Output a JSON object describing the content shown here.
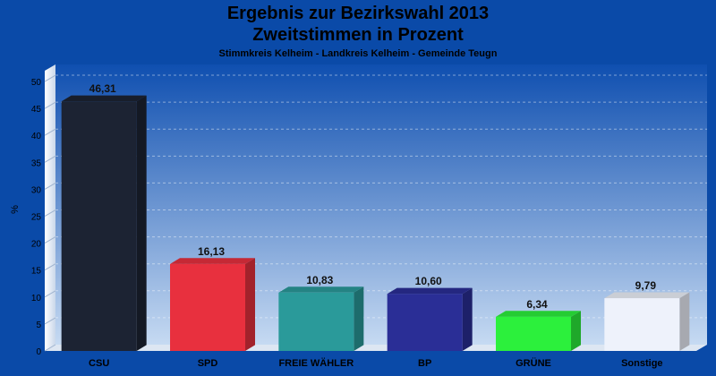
{
  "header": {
    "title_line1": "Ergebnis zur Bezirkswahl 2013",
    "title_line2": "Zweitstimmen in Prozent",
    "subtitle": "Stimmkreis Kelheim - Landkreis Kelheim - Gemeinde Teugn"
  },
  "chart_data": {
    "type": "bar",
    "title": "Ergebnis zur Bezirkswahl 2013 / Zweitstimmen in Prozent",
    "subtitle": "Stimmkreis Kelheim - Landkreis Kelheim - Gemeinde Teugn",
    "ylabel": "%",
    "xlabel": "",
    "ylim": [
      0,
      52
    ],
    "yticks": [
      0,
      5,
      10,
      15,
      20,
      25,
      30,
      35,
      40,
      45,
      50
    ],
    "categories": [
      "CSU",
      "SPD",
      "FREIE WÄHLER",
      "BP",
      "GRÜNE",
      "Sonstige"
    ],
    "values": [
      46.31,
      16.13,
      10.83,
      10.6,
      6.34,
      9.79
    ],
    "value_labels": [
      "46,31",
      "16,13",
      "10,83",
      "10,60",
      "6,34",
      "9,79"
    ],
    "colors": [
      "#1c2333",
      "#e8303e",
      "#2a9a9a",
      "#2a2e96",
      "#2cf03c",
      "#eef2fb"
    ],
    "grid": true,
    "legend": "none"
  }
}
